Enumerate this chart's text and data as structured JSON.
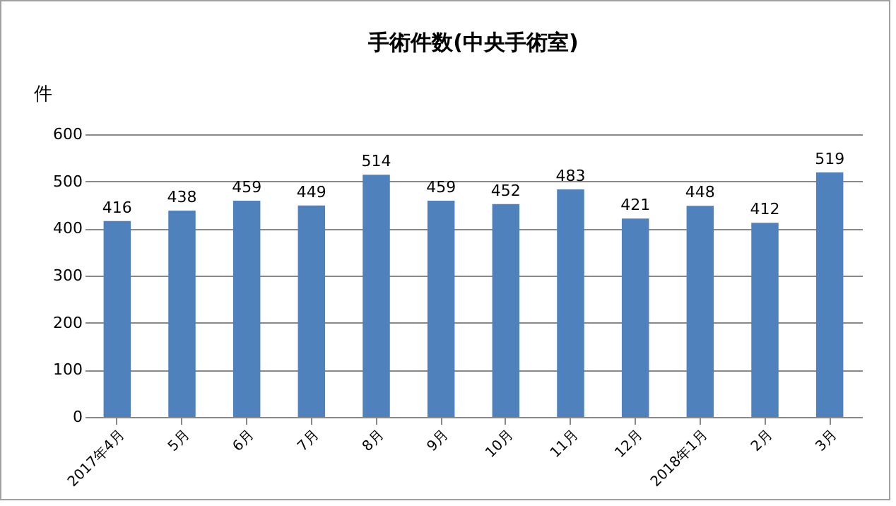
{
  "chart_data": {
    "type": "bar",
    "title": "手術件数(中央手術室)",
    "ylabel": "件",
    "categories": [
      "2017年4月",
      "5月",
      "6月",
      "7月",
      "8月",
      "9月",
      "10月",
      "11月",
      "12月",
      "2018年1月",
      "2月",
      "3月"
    ],
    "values": [
      416,
      438,
      459,
      449,
      514,
      459,
      452,
      483,
      421,
      448,
      412,
      519
    ],
    "color": "#4f81bd",
    "ylim": [
      0,
      600
    ],
    "yticks": [
      0,
      100,
      200,
      300,
      400,
      500,
      600
    ],
    "grid": "y",
    "data_labels": true
  }
}
